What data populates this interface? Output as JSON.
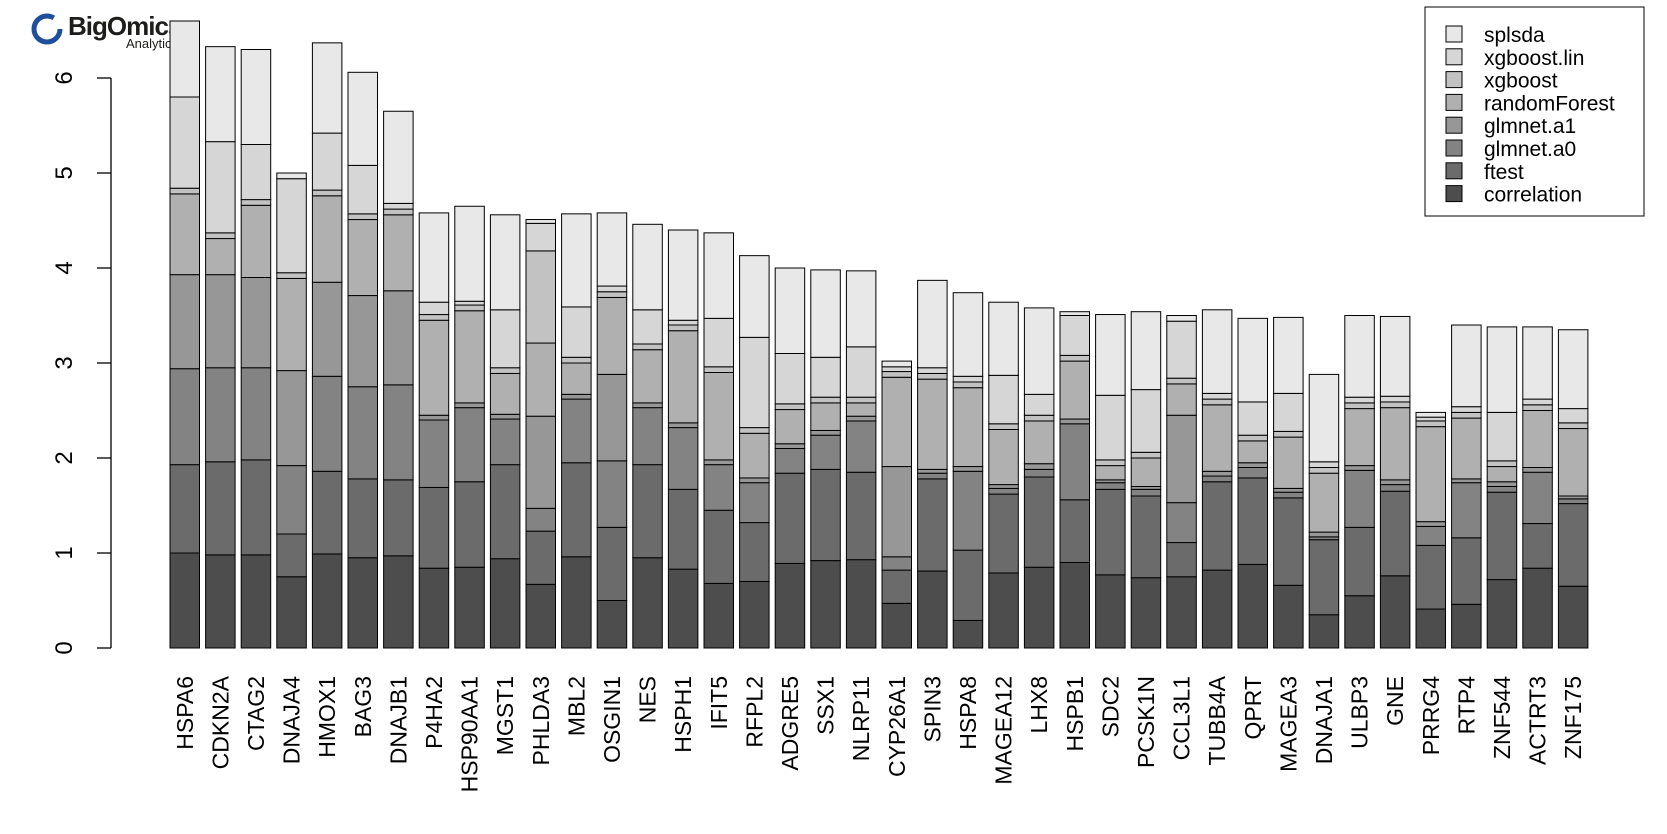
{
  "logo": {
    "name": "BigOmics",
    "tagline": "Analytics"
  },
  "chart_data": {
    "type": "bar",
    "stacked": true,
    "title": "",
    "xlabel": "",
    "ylabel": "",
    "ylim": [
      0,
      6.5
    ],
    "yticks": [
      0,
      1,
      2,
      3,
      4,
      5,
      6
    ],
    "grid": false,
    "legend_position": "top-right",
    "categories": [
      "HSPA6",
      "CDKN2A",
      "CTAG2",
      "DNAJA4",
      "HMOX1",
      "BAG3",
      "DNAJB1",
      "P4HA2",
      "HSP90AA1",
      "MGST1",
      "PHLDA3",
      "MBL2",
      "OSGIN1",
      "NES",
      "HSPH1",
      "IFIT5",
      "RFPL2",
      "ADGRE5",
      "SSX1",
      "NLRP11",
      "CYP26A1",
      "SPIN3",
      "HSPA8",
      "MAGEA12",
      "LHX8",
      "HSPB1",
      "SDC2",
      "PCSK1N",
      "CCL3L1",
      "TUBB4A",
      "QPRT",
      "MAGEA3",
      "DNAJA1",
      "ULBP3",
      "GNE",
      "PRRG4",
      "RTP4",
      "ZNF544",
      "ACTRT3",
      "ZNF175"
    ],
    "series": [
      {
        "name": "correlation",
        "color": "#4d4d4d",
        "values": [
          1.0,
          0.98,
          0.98,
          0.75,
          0.99,
          0.95,
          0.97,
          0.84,
          0.85,
          0.94,
          0.67,
          0.96,
          0.5,
          0.95,
          0.83,
          0.68,
          0.7,
          0.89,
          0.92,
          0.93,
          0.47,
          0.81,
          0.29,
          0.79,
          0.85,
          0.9,
          0.77,
          0.74,
          0.75,
          0.82,
          0.88,
          0.66,
          0.35,
          0.55,
          0.76,
          0.41,
          0.46,
          0.72,
          0.84,
          0.65
        ]
      },
      {
        "name": "ftest",
        "color": "#6b6b6b",
        "values": [
          0.93,
          0.98,
          1.0,
          0.45,
          0.87,
          0.83,
          0.8,
          0.85,
          0.9,
          0.99,
          0.56,
          0.99,
          0.77,
          0.98,
          0.84,
          0.77,
          0.62,
          0.95,
          0.96,
          0.92,
          0.35,
          0.97,
          0.74,
          0.83,
          0.95,
          0.66,
          0.9,
          0.86,
          0.36,
          0.93,
          0.91,
          0.92,
          0.79,
          0.72,
          0.89,
          0.67,
          0.7,
          0.92,
          0.47,
          0.87
        ]
      },
      {
        "name": "glmnet.a0",
        "color": "#838383",
        "values": [
          1.01,
          0.99,
          0.97,
          0.72,
          1.0,
          0.97,
          1.0,
          0.71,
          0.78,
          0.48,
          0.24,
          0.67,
          0.7,
          0.6,
          0.65,
          0.48,
          0.42,
          0.26,
          0.36,
          0.54,
          0.14,
          0.06,
          0.83,
          0.06,
          0.08,
          0.8,
          0.07,
          0.07,
          0.42,
          0.06,
          0.11,
          0.06,
          0.03,
          0.6,
          0.07,
          0.2,
          0.58,
          0.06,
          0.54,
          0.05
        ]
      },
      {
        "name": "glmnet.a1",
        "color": "#979797",
        "values": [
          0.99,
          0.98,
          0.95,
          1.0,
          0.99,
          0.96,
          0.99,
          0.05,
          0.05,
          0.05,
          0.97,
          0.05,
          0.91,
          0.05,
          0.05,
          0.05,
          0.05,
          0.05,
          0.05,
          0.05,
          0.95,
          0.04,
          0.05,
          0.04,
          0.06,
          0.05,
          0.03,
          0.03,
          0.92,
          0.05,
          0.05,
          0.04,
          0.05,
          0.05,
          0.05,
          0.05,
          0.04,
          0.05,
          0.05,
          0.03
        ]
      },
      {
        "name": "randomForest",
        "color": "#b0b0b0",
        "values": [
          0.85,
          0.38,
          0.76,
          0.97,
          0.91,
          0.8,
          0.8,
          1.0,
          0.97,
          0.43,
          0.77,
          0.33,
          0.81,
          0.56,
          0.97,
          0.92,
          0.47,
          0.36,
          0.29,
          0.14,
          0.94,
          0.95,
          0.83,
          0.58,
          0.45,
          0.61,
          0.15,
          0.3,
          0.33,
          0.7,
          0.23,
          0.54,
          0.62,
          0.6,
          0.76,
          1.0,
          0.64,
          0.16,
          0.6,
          0.71
        ]
      },
      {
        "name": "xgboost",
        "color": "#c2c2c2",
        "values": [
          0.06,
          0.06,
          0.06,
          0.06,
          0.06,
          0.06,
          0.06,
          0.06,
          0.06,
          0.06,
          0.97,
          0.06,
          0.06,
          0.06,
          0.06,
          0.06,
          0.06,
          0.06,
          0.06,
          0.06,
          0.06,
          0.06,
          0.06,
          0.06,
          0.06,
          0.06,
          0.06,
          0.06,
          0.06,
          0.06,
          0.06,
          0.06,
          0.06,
          0.06,
          0.06,
          0.06,
          0.06,
          0.06,
          0.06,
          0.06
        ]
      },
      {
        "name": "xgboost.lin",
        "color": "#d6d6d6",
        "values": [
          0.96,
          0.96,
          0.58,
          0.99,
          0.6,
          0.51,
          0.06,
          0.13,
          0.04,
          0.61,
          0.29,
          0.53,
          0.06,
          0.36,
          0.05,
          0.51,
          0.95,
          0.53,
          0.42,
          0.53,
          0.05,
          0.06,
          0.06,
          0.51,
          0.22,
          0.42,
          0.68,
          0.66,
          0.6,
          0.06,
          0.35,
          0.4,
          0.06,
          0.06,
          0.06,
          0.04,
          0.06,
          0.51,
          0.06,
          0.15
        ]
      },
      {
        "name": "splsda",
        "color": "#e8e8e8",
        "values": [
          0.8,
          1.0,
          1.0,
          0.06,
          0.95,
          0.98,
          0.97,
          0.94,
          1.0,
          1.0,
          0.04,
          0.98,
          0.77,
          0.9,
          0.95,
          0.9,
          0.86,
          0.9,
          0.92,
          0.8,
          0.06,
          0.92,
          0.88,
          0.77,
          0.91,
          0.04,
          0.85,
          0.82,
          0.06,
          0.88,
          0.88,
          0.8,
          0.92,
          0.86,
          0.84,
          0.05,
          0.86,
          0.9,
          0.76,
          0.83
        ]
      }
    ]
  }
}
